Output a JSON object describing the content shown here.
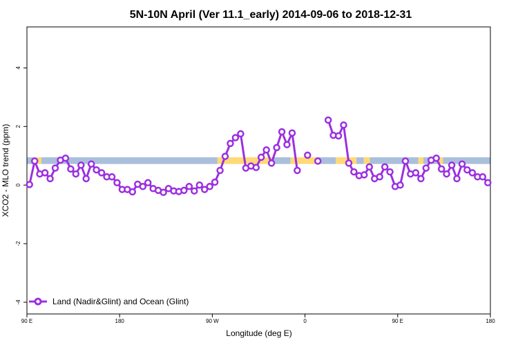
{
  "chart_data": {
    "type": "line",
    "title": "5N-10N April (Ver 11.1_early)   2014-09-06 to 2018-12-31",
    "xlabel": "Longitude (deg E)",
    "ylabel": "XCO2 - MLO trend (ppm)",
    "x_ticks": [
      {
        "value": 90,
        "label": "90 E"
      },
      {
        "value": 180,
        "label": "180"
      },
      {
        "value": 270,
        "label": "90 W"
      },
      {
        "value": 360,
        "label": "0"
      },
      {
        "value": 450,
        "label": "90 E"
      },
      {
        "value": 540,
        "label": "180"
      }
    ],
    "y_ticks": [
      {
        "value": -4,
        "label": "-4"
      },
      {
        "value": -2,
        "label": "-2"
      },
      {
        "value": 0,
        "label": "0"
      },
      {
        "value": 2,
        "label": "2"
      },
      {
        "value": 4,
        "label": "4"
      }
    ],
    "xlim": [
      90,
      540
    ],
    "ylim": [
      -4.4,
      5.4
    ],
    "background_band": {
      "y_range": [
        0.72,
        0.95
      ],
      "segments": [
        {
          "x_range": [
            90,
            98
          ],
          "surface": "ocean"
        },
        {
          "x_range": [
            98,
            104
          ],
          "surface": "land"
        },
        {
          "x_range": [
            104,
            275
          ],
          "surface": "ocean"
        },
        {
          "x_range": [
            275,
            329
          ],
          "surface": "land"
        },
        {
          "x_range": [
            329,
            346
          ],
          "surface": "ocean"
        },
        {
          "x_range": [
            346,
            372
          ],
          "surface": "land"
        },
        {
          "x_range": [
            372,
            390
          ],
          "surface": "ocean"
        },
        {
          "x_range": [
            390,
            410
          ],
          "surface": "land"
        },
        {
          "x_range": [
            410,
            417
          ],
          "surface": "ocean"
        },
        {
          "x_range": [
            417,
            423
          ],
          "surface": "land"
        },
        {
          "x_range": [
            423,
            470
          ],
          "surface": "ocean"
        },
        {
          "x_range": [
            470,
            475
          ],
          "surface": "land"
        },
        {
          "x_range": [
            475,
            489
          ],
          "surface": "ocean"
        },
        {
          "x_range": [
            489,
            494
          ],
          "surface": "land"
        },
        {
          "x_range": [
            494,
            540
          ],
          "surface": "ocean"
        }
      ],
      "colors": {
        "ocean": "#a9bfdc",
        "land": "#ffd978"
      }
    },
    "series": [
      {
        "name": "Land (Nadir&Glint) and Ocean (Glint)",
        "color": "#9b2fe0",
        "segments": [
          {
            "x": [
              92.5,
              97.5,
              102.5,
              107.5,
              112.5,
              117.5,
              122.5,
              127.5,
              132.5,
              137.5,
              142.5,
              147.5,
              152.5,
              157.5,
              162.5,
              167.5,
              172.5,
              177.5,
              182.5,
              187.5,
              192.5,
              197.5,
              202.5,
              207.5,
              212.5,
              217.5,
              222.5,
              227.5,
              232.5,
              237.5,
              242.5,
              247.5,
              252.5,
              257.5,
              262.5,
              267.5,
              272.5,
              277.5,
              282.5,
              287.5,
              292.5,
              297.5,
              302.5,
              307.5,
              312.5,
              317.5,
              322.5,
              327.5,
              332.5,
              337.5,
              342.5,
              347.5,
              352.5,
              357.5
            ],
            "y": [
              0.02,
              0.82,
              0.38,
              0.42,
              0.22,
              0.58,
              0.85,
              0.92,
              0.55,
              0.38,
              0.68,
              0.22,
              0.72,
              0.52,
              0.42,
              0.28,
              0.28,
              0.08,
              -0.15,
              -0.15,
              -0.23,
              0.03,
              -0.05,
              0.08,
              -0.12,
              -0.18,
              -0.25,
              -0.12,
              -0.2,
              -0.22,
              -0.18,
              -0.05,
              -0.2,
              0.0,
              -0.15,
              -0.05,
              0.1,
              0.5,
              0.98,
              1.42,
              1.62,
              1.75,
              0.58,
              0.65,
              0.6,
              0.95,
              1.2,
              0.75,
              1.28,
              1.82,
              1.38,
              1.78,
              0.5,
              null
            ]
          },
          {
            "x": [
              362.5
            ],
            "y": [
              1.02
            ]
          },
          {
            "x": [
              372.5
            ],
            "y": [
              0.82
            ]
          },
          {
            "x": [
              382.5,
              387.5,
              392.5,
              397.5,
              402.5,
              407.5,
              412.5,
              417.5,
              422.5,
              427.5,
              432.5,
              437.5,
              442.5,
              447.5,
              452.5,
              457.5,
              462.5,
              467.5,
              472.5,
              477.5,
              482.5,
              487.5,
              492.5,
              497.5,
              502.5,
              507.5,
              512.5,
              517.5,
              522.5,
              527.5,
              532.5,
              537.5
            ],
            "y": [
              2.22,
              1.7,
              1.68,
              2.05,
              0.75,
              0.45,
              0.32,
              0.35,
              0.62,
              0.22,
              0.28,
              0.62,
              0.45,
              -0.05,
              0.0,
              0.82,
              0.38,
              0.42,
              0.22,
              0.58,
              0.85,
              0.92,
              0.55,
              0.38,
              0.68,
              0.22,
              0.72,
              0.52,
              0.42,
              0.28,
              0.28,
              0.08
            ]
          }
        ]
      }
    ],
    "legend": {
      "position": "bottom-left"
    }
  }
}
